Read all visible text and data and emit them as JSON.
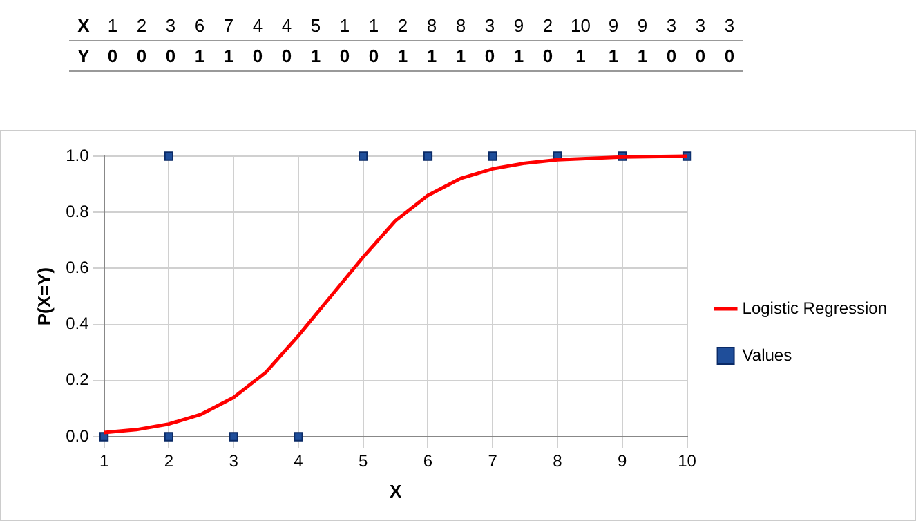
{
  "chart_data": {
    "type": "scatter",
    "xlabel": "X",
    "ylabel": "P(X=Y)",
    "annotations": [
      "X 1 2 3 6 7 4 4 5 1 1 2 8 8 3 9 2 10 9 9 3 3 3",
      "Y 0 0 0 1 1 0 0 1 0 0 1 1 1 0 1 0 1 1 1 0 0 0"
    ],
    "series": [
      {
        "name": "Logistic Regression",
        "type": "line",
        "color": "#ff0000",
        "marker": "none",
        "x": [
          1,
          1.5,
          2,
          2.5,
          3,
          3.5,
          4,
          4.5,
          5,
          5.5,
          6,
          6.5,
          7,
          7.5,
          8,
          9,
          10
        ],
        "values": [
          0.015,
          0.025,
          0.045,
          0.08,
          0.14,
          0.23,
          0.36,
          0.5,
          0.64,
          0.77,
          0.86,
          0.92,
          0.955,
          0.975,
          0.987,
          0.997,
          1.0
        ]
      },
      {
        "name": "Values",
        "type": "scatter",
        "color": "#1f4e9a",
        "marker": "square",
        "x": [
          1,
          2,
          3,
          4,
          2,
          5,
          6,
          7,
          8,
          9,
          10
        ],
        "values": [
          0,
          0,
          0,
          0,
          1,
          1,
          1,
          1,
          1,
          1,
          1
        ]
      }
    ],
    "xlim": [
      1,
      10
    ],
    "xticks": [
      1,
      2,
      3,
      4,
      5,
      6,
      7,
      8,
      9,
      10
    ],
    "ylim": [
      0,
      1
    ],
    "yticks": [
      {
        "value": 0,
        "label": "0.0"
      },
      {
        "value": 0.2,
        "label": "0.2"
      },
      {
        "value": 0.4,
        "label": "0.4"
      },
      {
        "value": 0.6,
        "label": "0.6"
      },
      {
        "value": 0.8,
        "label": "0.8"
      },
      {
        "value": 1,
        "label": "1.0"
      }
    ],
    "grid": true,
    "legend": "right"
  }
}
